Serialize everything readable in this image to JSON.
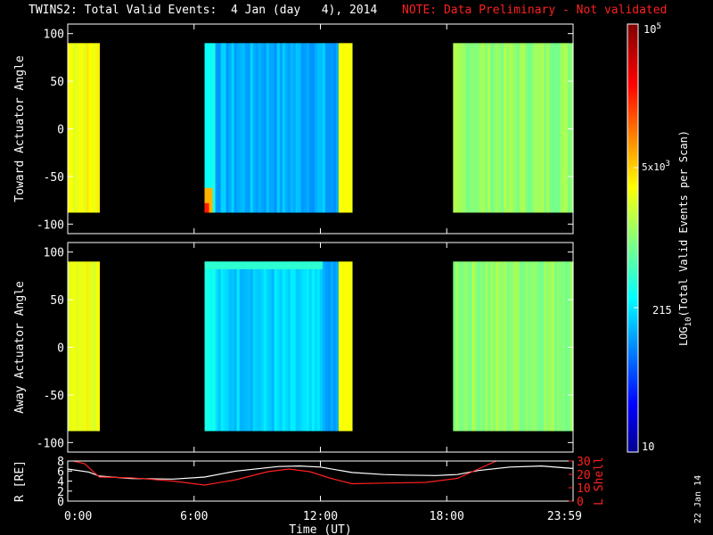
{
  "header": {
    "title": "TWINS2: Total Valid Events:  4 Jan (day   4), 2014",
    "note": "NOTE: Data Preliminary - Not validated"
  },
  "stamp": "22 Jan 14",
  "colors": {
    "background": "#000000",
    "text": "#ffffff",
    "note": "#ff2020",
    "r_line": "#ffffff",
    "lshell_line": "#ff2020"
  },
  "chart_data": [
    {
      "id": "toward",
      "type": "heatmap",
      "ylabel": "Toward Actuator Angle",
      "yticks": [
        100,
        50,
        0,
        -50,
        -100
      ],
      "ylim": [
        -110,
        110
      ],
      "xlim": [
        0,
        24
      ],
      "data_angle_range": [
        -88,
        90
      ],
      "segments": [
        {
          "start": 0.0,
          "end": 1.5,
          "level": 0.62
        },
        {
          "start": 6.5,
          "end": 13.5,
          "level": 0.3
        },
        {
          "start": 18.3,
          "end": 24.0,
          "level": 0.52
        }
      ]
    },
    {
      "id": "away",
      "type": "heatmap",
      "ylabel": "Away Actuator Angle",
      "yticks": [
        100,
        50,
        0,
        -50,
        -100
      ],
      "ylim": [
        -110,
        110
      ],
      "xlim": [
        0,
        24
      ],
      "data_angle_range": [
        -88,
        90
      ],
      "segments": [
        {
          "start": 0.0,
          "end": 1.5,
          "level": 0.62
        },
        {
          "start": 6.5,
          "end": 13.5,
          "level": 0.33
        },
        {
          "start": 18.3,
          "end": 24.0,
          "level": 0.52
        }
      ]
    },
    {
      "id": "orbit",
      "type": "line",
      "xlabel": "Time (UT)",
      "ylabel_left": "R [RE]",
      "ylabel_right": "L Shell",
      "left_ticks": [
        8,
        6,
        4,
        2,
        0
      ],
      "right_ticks": [
        30,
        20,
        10,
        0
      ],
      "left_ylim": [
        0,
        8
      ],
      "right_ylim": [
        0,
        30
      ],
      "xlim": [
        0,
        24
      ],
      "xticks": [
        0,
        6,
        12,
        18,
        24
      ],
      "xticklabels": [
        "0:00",
        "6:00",
        "12:00",
        "18:00",
        "23:59"
      ],
      "series": [
        {
          "axis": "left",
          "x": [
            0,
            1,
            1.5,
            3,
            5,
            6.5,
            8,
            10,
            11,
            12,
            13.5,
            15,
            16,
            17.5,
            18.5,
            19.5,
            21,
            22.5,
            24
          ],
          "y": [
            6.4,
            5.8,
            5.0,
            4.5,
            4.4,
            4.8,
            6.0,
            6.9,
            7.0,
            6.8,
            5.7,
            5.3,
            5.2,
            5.1,
            5.3,
            6.1,
            6.8,
            7.0,
            6.5
          ]
        },
        {
          "axis": "right",
          "x": [
            0,
            0.8,
            1.5,
            3,
            5,
            6.5,
            8,
            9.5,
            10.5,
            11.5,
            12.5,
            13.5,
            15,
            17,
            18.5,
            19.5,
            20.5
          ],
          "y": [
            31,
            28,
            18,
            17.5,
            15,
            12,
            16,
            22,
            24,
            22,
            17,
            13,
            13.5,
            14,
            17,
            24,
            31
          ]
        }
      ]
    }
  ],
  "colorbar": {
    "label_html": "LOG<sub>10</sub>(Total Valid Events per Scan)",
    "label_prefix": "LOG",
    "label_sub": "10",
    "label_suffix": "(Total Valid Events per Scan)",
    "tick_top_base": "10",
    "tick_top_exp": "5",
    "tick_mid_mant": "5x",
    "tick_mid_base": "10",
    "tick_mid_exp": "3",
    "tick_215": "215",
    "tick_bottom": "10"
  }
}
